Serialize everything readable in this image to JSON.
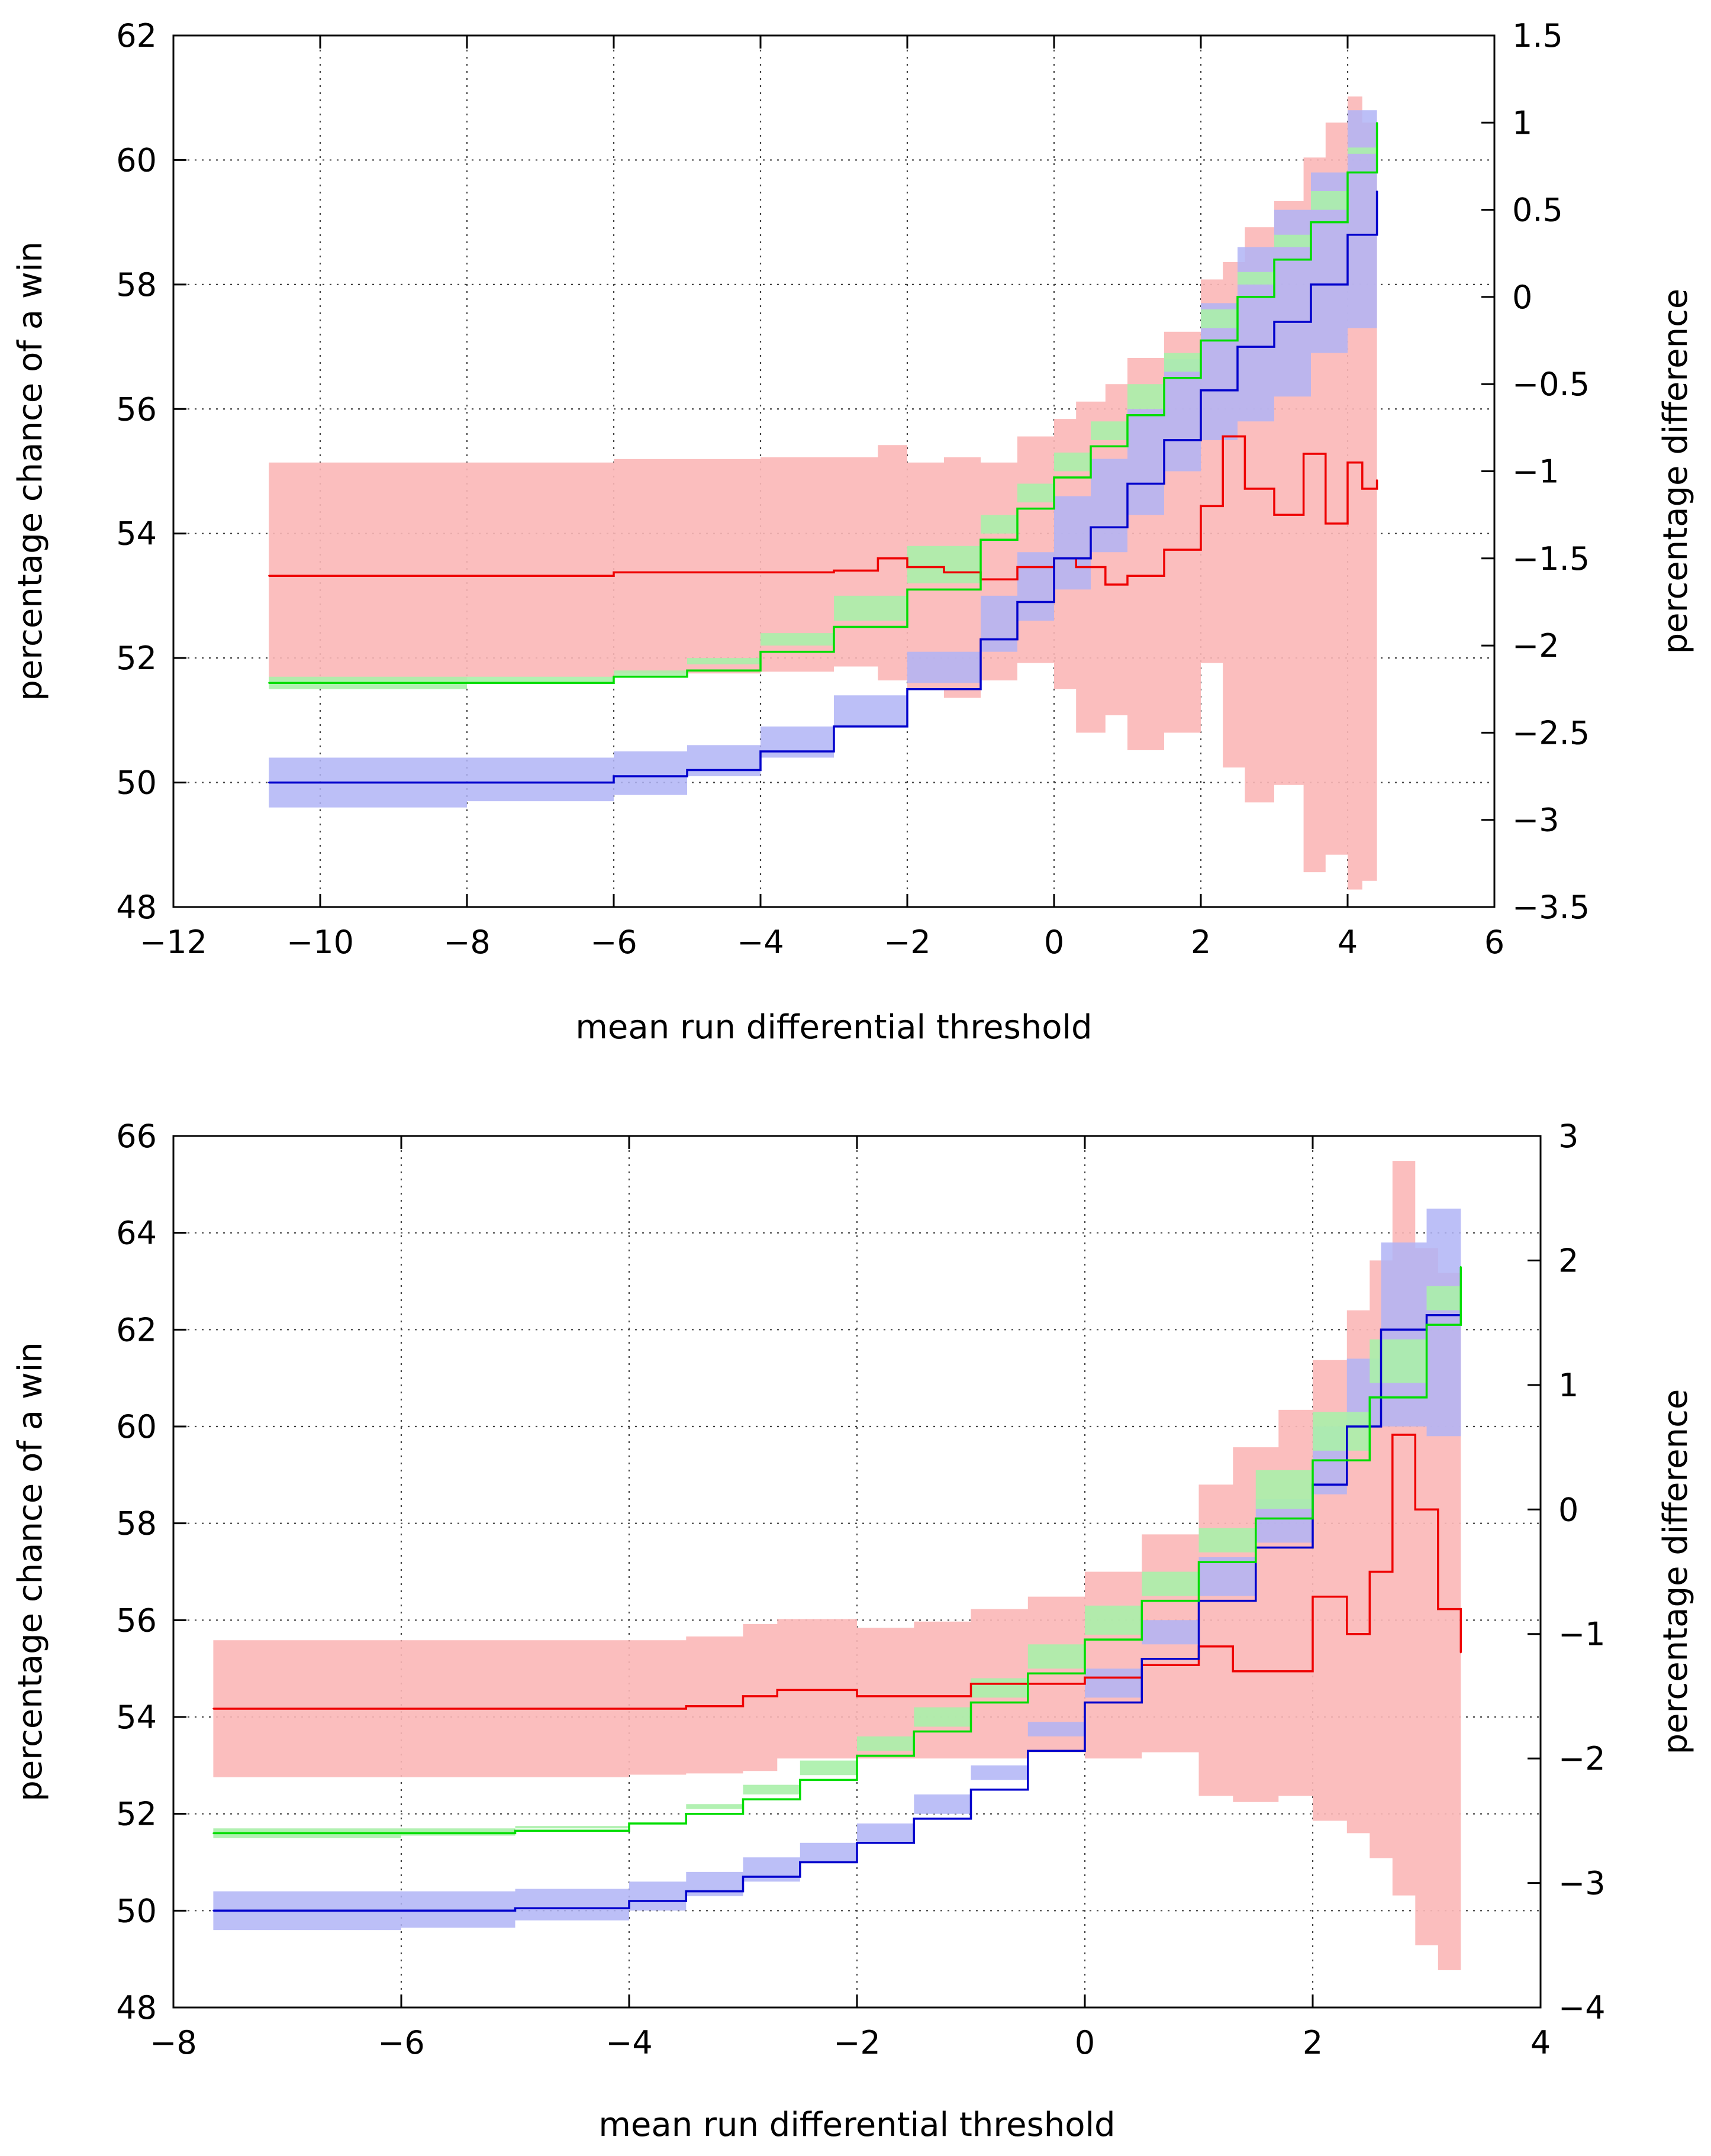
{
  "colors": {
    "blue_line": "#0000cc",
    "blue_band": "#b0b4f6",
    "green_line": "#00dd00",
    "green_band": "#aaf0aa",
    "red_line": "#ee0000",
    "red_band": "#fbb7b7",
    "grid": "#444444"
  },
  "chart_data": [
    {
      "type": "line",
      "xlabel": "mean run differential threshold",
      "ylabel": "percentage chance of a win",
      "y2label": "percentage difference",
      "xlim": [
        -12,
        6
      ],
      "ylim": [
        48,
        62
      ],
      "y2lim": [
        -3.5,
        1.5
      ],
      "xticks": [
        -12,
        -10,
        -8,
        -6,
        -4,
        -2,
        0,
        2,
        4,
        6
      ],
      "xtick_labels": [
        "−12",
        "−10",
        "−8",
        "−6",
        "−4",
        "−2",
        "0",
        "2",
        "4",
        "6"
      ],
      "yticks": [
        48,
        50,
        52,
        54,
        56,
        58,
        60,
        62
      ],
      "ytick_labels": [
        "48",
        "50",
        "52",
        "54",
        "56",
        "58",
        "60",
        "62"
      ],
      "y2ticks": [
        -3.5,
        -3,
        -2.5,
        -2,
        -1.5,
        -1,
        -0.5,
        0,
        0.5,
        1,
        1.5
      ],
      "y2tick_labels": [
        "−3.5",
        "−3",
        "−2.5",
        "−2",
        "−1.5",
        "−1",
        "−0.5",
        "0",
        "0.5",
        "1",
        "1.5"
      ],
      "grid": true,
      "series": [
        {
          "color": "blue",
          "axis": "left",
          "band": true,
          "x": [
            -10.7,
            -8,
            -6,
            -5,
            -4,
            -3,
            -2,
            -1,
            -0.5,
            0,
            0.5,
            1,
            1.5,
            2,
            2.5,
            3,
            3.5,
            4,
            4.4
          ],
          "y": [
            50.0,
            50.0,
            50.1,
            50.2,
            50.5,
            50.9,
            51.5,
            52.3,
            52.9,
            53.6,
            54.1,
            54.8,
            55.5,
            56.3,
            57.0,
            57.4,
            58.0,
            58.8,
            59.5
          ],
          "lower": [
            49.6,
            49.6,
            49.7,
            49.8,
            50.1,
            50.4,
            50.9,
            51.6,
            52.1,
            52.6,
            53.1,
            53.7,
            54.3,
            55.0,
            55.5,
            55.8,
            56.2,
            56.9,
            57.3
          ],
          "upper": [
            50.4,
            50.4,
            50.5,
            50.6,
            50.9,
            51.4,
            52.1,
            53.0,
            53.7,
            54.6,
            55.2,
            56.0,
            56.8,
            57.7,
            58.6,
            59.2,
            59.8,
            60.8,
            61.7
          ]
        },
        {
          "color": "green",
          "axis": "left",
          "band": true,
          "x": [
            -10.7,
            -8,
            -6,
            -5,
            -4,
            -3,
            -2,
            -1,
            -0.5,
            0,
            0.5,
            1,
            1.5,
            2,
            2.5,
            3,
            3.5,
            4,
            4.4
          ],
          "y": [
            51.6,
            51.6,
            51.7,
            51.8,
            52.1,
            52.5,
            53.1,
            53.9,
            54.4,
            54.9,
            55.4,
            55.9,
            56.5,
            57.1,
            57.8,
            58.4,
            59.0,
            59.8,
            60.6
          ],
          "lower": [
            51.5,
            51.5,
            51.6,
            51.7,
            52.0,
            52.4,
            53.0,
            53.8,
            54.3,
            54.8,
            55.3,
            55.8,
            56.4,
            56.9,
            57.6,
            58.2,
            58.8,
            59.5,
            60.2
          ],
          "upper": [
            51.7,
            51.7,
            51.8,
            51.9,
            52.2,
            52.6,
            53.2,
            54.0,
            54.5,
            55.0,
            55.5,
            56.0,
            56.6,
            57.3,
            58.0,
            58.6,
            59.2,
            60.1,
            60.9
          ]
        },
        {
          "color": "red",
          "axis": "right",
          "band": true,
          "x": [
            -10.7,
            -8,
            -6,
            -4,
            -3,
            -2.4,
            -2,
            -1.5,
            -1,
            -0.5,
            0,
            0.3,
            0.7,
            1,
            1.5,
            2,
            2.3,
            2.6,
            3,
            3.4,
            3.7,
            4,
            4.2,
            4.4
          ],
          "y": [
            -1.6,
            -1.6,
            -1.58,
            -1.58,
            -1.57,
            -1.5,
            -1.55,
            -1.58,
            -1.62,
            -1.55,
            -1.5,
            -1.55,
            -1.65,
            -1.6,
            -1.45,
            -1.2,
            -0.8,
            -1.1,
            -1.25,
            -0.9,
            -1.3,
            -0.95,
            -1.1,
            -1.05
          ],
          "lower": [
            -2.2,
            -2.2,
            -2.18,
            -2.16,
            -2.15,
            -2.12,
            -2.2,
            -2.25,
            -2.3,
            -2.2,
            -2.1,
            -2.25,
            -2.5,
            -2.4,
            -2.6,
            -2.5,
            -2.1,
            -2.7,
            -2.9,
            -2.8,
            -3.3,
            -3.2,
            -3.4,
            -3.35
          ],
          "upper": [
            -0.95,
            -0.95,
            -0.93,
            -0.92,
            -0.92,
            -0.85,
            -0.95,
            -0.92,
            -0.95,
            -0.8,
            -0.7,
            -0.6,
            -0.5,
            -0.35,
            -0.2,
            0.1,
            0.2,
            0.4,
            0.55,
            0.8,
            1.0,
            1.15,
            1.0,
            0.9
          ]
        }
      ]
    },
    {
      "type": "line",
      "xlabel": "mean run differential threshold",
      "ylabel": "percentage chance of a win",
      "y2label": "percentage difference",
      "xlim": [
        -8,
        4
      ],
      "ylim": [
        48,
        66
      ],
      "y2lim": [
        -4,
        3
      ],
      "xticks": [
        -8,
        -6,
        -4,
        -2,
        0,
        2,
        4
      ],
      "xtick_labels": [
        "−8",
        "−6",
        "−4",
        "−2",
        "0",
        "2",
        "4"
      ],
      "yticks": [
        48,
        50,
        52,
        54,
        56,
        58,
        60,
        62,
        64,
        66
      ],
      "ytick_labels": [
        "48",
        "50",
        "52",
        "54",
        "56",
        "58",
        "60",
        "62",
        "64",
        "66"
      ],
      "y2ticks": [
        -4,
        -3,
        -2,
        -1,
        0,
        1,
        2,
        3
      ],
      "y2tick_labels": [
        "−4",
        "−3",
        "−2",
        "−1",
        "0",
        "1",
        "2",
        "3"
      ],
      "grid": true,
      "series": [
        {
          "color": "blue",
          "axis": "left",
          "band": true,
          "x": [
            -7.65,
            -6,
            -5,
            -4,
            -3.5,
            -3,
            -2.5,
            -2,
            -1.5,
            -1,
            -0.5,
            0,
            0.5,
            1,
            1.5,
            2,
            2.3,
            2.6,
            3,
            3.3
          ],
          "y": [
            50.0,
            50.0,
            50.05,
            50.2,
            50.4,
            50.7,
            51.0,
            51.4,
            51.9,
            52.5,
            53.3,
            54.3,
            55.2,
            56.4,
            57.5,
            58.8,
            60.0,
            62.0,
            62.3,
            62.1
          ],
          "lower": [
            49.6,
            49.6,
            49.65,
            49.8,
            50.0,
            50.3,
            50.6,
            51.0,
            51.4,
            52.0,
            52.7,
            53.6,
            54.4,
            55.5,
            56.5,
            57.6,
            58.6,
            60.0,
            60.0,
            59.8
          ],
          "upper": [
            50.4,
            50.4,
            50.45,
            50.6,
            50.8,
            51.1,
            51.4,
            51.8,
            52.4,
            53.0,
            53.9,
            55.0,
            56.0,
            57.3,
            58.5,
            60.0,
            61.4,
            63.8,
            64.5,
            64.6
          ]
        },
        {
          "color": "green",
          "axis": "left",
          "band": true,
          "x": [
            -7.65,
            -6,
            -5,
            -4,
            -3.5,
            -3,
            -2.5,
            -2,
            -1.5,
            -1,
            -0.5,
            0,
            0.5,
            1,
            1.5,
            2,
            2.5,
            3,
            3.3
          ],
          "y": [
            51.6,
            51.6,
            51.65,
            51.8,
            52.0,
            52.3,
            52.7,
            53.2,
            53.7,
            54.3,
            54.9,
            55.6,
            56.4,
            57.2,
            58.1,
            59.3,
            60.6,
            62.1,
            63.3
          ],
          "lower": [
            51.5,
            51.5,
            51.55,
            51.7,
            51.9,
            52.2,
            52.6,
            53.1,
            53.6,
            54.2,
            54.8,
            55.5,
            56.3,
            57.0,
            57.9,
            59.1,
            60.3,
            61.8,
            62.9
          ],
          "upper": [
            51.7,
            51.7,
            51.75,
            51.9,
            52.1,
            52.4,
            52.8,
            53.3,
            53.8,
            54.4,
            55.0,
            55.7,
            56.5,
            57.4,
            58.3,
            59.5,
            60.9,
            62.4,
            63.7
          ]
        },
        {
          "color": "red",
          "axis": "right",
          "band": true,
          "x": [
            -7.65,
            -6,
            -5,
            -4,
            -3.5,
            -3,
            -2.7,
            -2,
            -1.5,
            -1,
            -0.5,
            0,
            0.5,
            1,
            1.3,
            1.7,
            2,
            2.3,
            2.5,
            2.7,
            2.9,
            3.1,
            3.3
          ],
          "y": [
            -1.6,
            -1.6,
            -1.6,
            -1.6,
            -1.58,
            -1.5,
            -1.45,
            -1.5,
            -1.5,
            -1.4,
            -1.4,
            -1.35,
            -1.25,
            -1.1,
            -1.3,
            -1.3,
            -0.7,
            -1.0,
            -0.5,
            0.6,
            0.0,
            -0.8,
            -1.15
          ],
          "lower": [
            -2.15,
            -2.15,
            -2.15,
            -2.15,
            -2.13,
            -2.12,
            -2.1,
            -2.0,
            -2.0,
            -2.0,
            -2.0,
            -1.95,
            -2.0,
            -1.95,
            -2.3,
            -2.35,
            -2.3,
            -2.5,
            -2.6,
            -2.8,
            -3.1,
            -3.5,
            -3.7
          ],
          "upper": [
            -1.05,
            -1.05,
            -1.05,
            -1.05,
            -1.02,
            -0.92,
            -0.88,
            -0.95,
            -0.9,
            -0.8,
            -0.7,
            -0.5,
            -0.2,
            0.2,
            0.5,
            0.8,
            1.2,
            1.6,
            2.0,
            2.8,
            2.1,
            1.9,
            1.4
          ]
        }
      ]
    }
  ]
}
